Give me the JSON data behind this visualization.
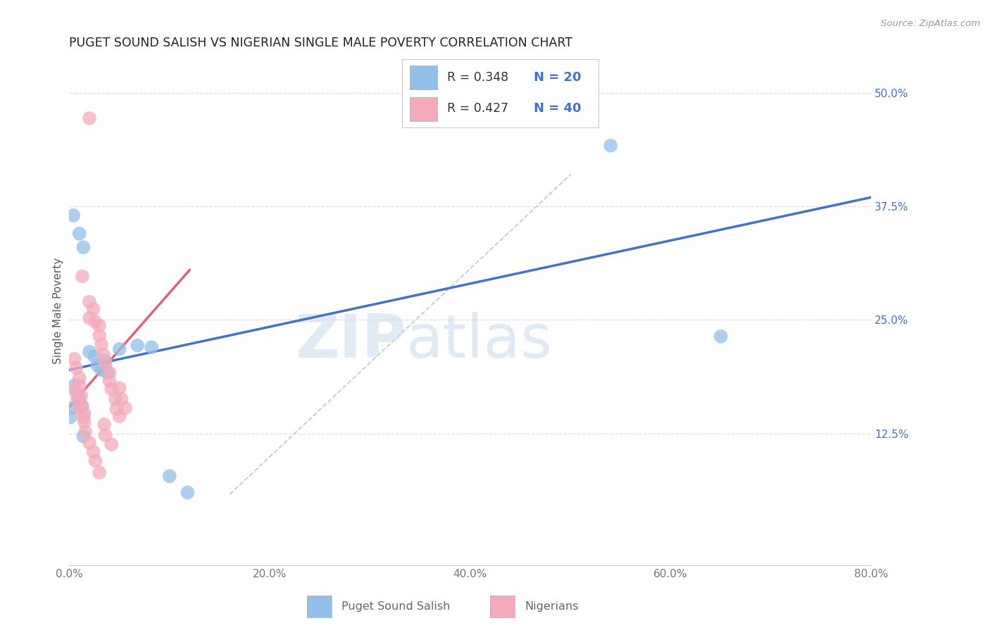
{
  "title": "PUGET SOUND SALISH VS NIGERIAN SINGLE MALE POVERTY CORRELATION CHART",
  "source": "Source: ZipAtlas.com",
  "xlabel_blue": "Puget Sound Salish",
  "xlabel_pink": "Nigerians",
  "ylabel": "Single Male Poverty",
  "xlim": [
    0.0,
    0.8
  ],
  "ylim": [
    -0.02,
    0.54
  ],
  "xticks": [
    0.0,
    0.2,
    0.4,
    0.6,
    0.8
  ],
  "xticklabels": [
    "0.0%",
    "20.0%",
    "40.0%",
    "60.0%",
    "80.0%"
  ],
  "yticks": [
    0.125,
    0.25,
    0.375,
    0.5
  ],
  "yticklabels": [
    "12.5%",
    "25.0%",
    "37.5%",
    "50.0%"
  ],
  "color_blue": "#92C0E8",
  "color_pink": "#F4AABB",
  "color_blue_line": "#4472C4",
  "color_pink_line": "#E06080",
  "color_label": "#4472C4",
  "watermark_zip": "ZIP",
  "watermark_atlas": "atlas",
  "blue_points": [
    [
      0.004,
      0.365
    ],
    [
      0.01,
      0.345
    ],
    [
      0.014,
      0.33
    ],
    [
      0.02,
      0.215
    ],
    [
      0.025,
      0.21
    ],
    [
      0.028,
      0.2
    ],
    [
      0.032,
      0.195
    ],
    [
      0.036,
      0.205
    ],
    [
      0.038,
      0.192
    ],
    [
      0.005,
      0.178
    ],
    [
      0.008,
      0.17
    ],
    [
      0.01,
      0.163
    ],
    [
      0.013,
      0.155
    ],
    [
      0.014,
      0.122
    ],
    [
      0.068,
      0.222
    ],
    [
      0.082,
      0.22
    ],
    [
      0.05,
      0.218
    ],
    [
      0.1,
      0.078
    ],
    [
      0.118,
      0.06
    ],
    [
      0.54,
      0.442
    ],
    [
      0.65,
      0.232
    ],
    [
      0.002,
      0.153
    ],
    [
      0.001,
      0.143
    ]
  ],
  "pink_points": [
    [
      0.02,
      0.472
    ],
    [
      0.013,
      0.298
    ],
    [
      0.02,
      0.27
    ],
    [
      0.024,
      0.262
    ],
    [
      0.02,
      0.252
    ],
    [
      0.026,
      0.248
    ],
    [
      0.03,
      0.244
    ],
    [
      0.03,
      0.233
    ],
    [
      0.032,
      0.223
    ],
    [
      0.034,
      0.212
    ],
    [
      0.036,
      0.202
    ],
    [
      0.04,
      0.192
    ],
    [
      0.04,
      0.183
    ],
    [
      0.042,
      0.174
    ],
    [
      0.046,
      0.163
    ],
    [
      0.047,
      0.152
    ],
    [
      0.05,
      0.144
    ],
    [
      0.005,
      0.207
    ],
    [
      0.007,
      0.197
    ],
    [
      0.01,
      0.186
    ],
    [
      0.01,
      0.178
    ],
    [
      0.012,
      0.167
    ],
    [
      0.012,
      0.156
    ],
    [
      0.015,
      0.147
    ],
    [
      0.015,
      0.138
    ],
    [
      0.016,
      0.127
    ],
    [
      0.02,
      0.115
    ],
    [
      0.024,
      0.105
    ],
    [
      0.026,
      0.095
    ],
    [
      0.03,
      0.082
    ],
    [
      0.035,
      0.135
    ],
    [
      0.036,
      0.123
    ],
    [
      0.042,
      0.113
    ],
    [
      0.05,
      0.175
    ],
    [
      0.052,
      0.163
    ],
    [
      0.056,
      0.153
    ],
    [
      0.005,
      0.173
    ],
    [
      0.008,
      0.163
    ],
    [
      0.01,
      0.153
    ],
    [
      0.014,
      0.143
    ]
  ],
  "blue_line": [
    [
      0.0,
      0.195
    ],
    [
      0.8,
      0.385
    ]
  ],
  "pink_line": [
    [
      -0.005,
      0.148
    ],
    [
      0.12,
      0.305
    ]
  ],
  "diag_line": [
    [
      0.16,
      0.058
    ],
    [
      0.5,
      0.41
    ]
  ]
}
